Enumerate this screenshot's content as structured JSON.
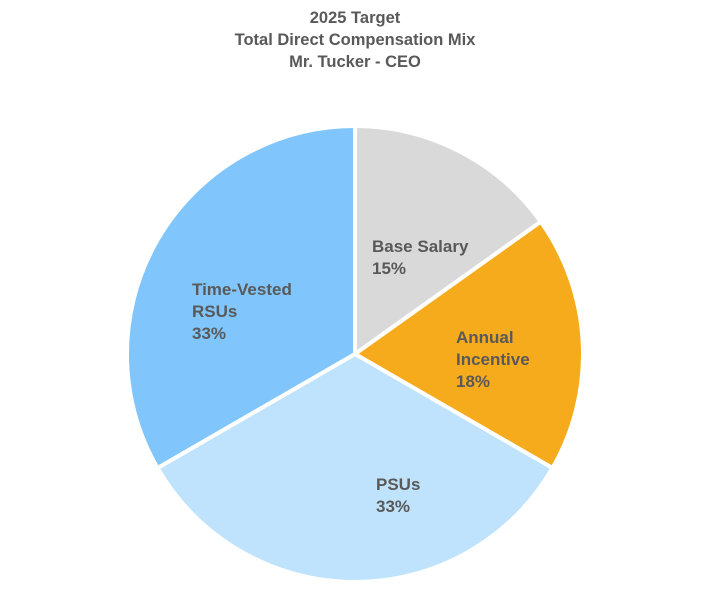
{
  "chart_data": {
    "type": "pie",
    "title": "2025 Target",
    "subtitle_lines": [
      "Total Direct Compensation Mix",
      "Mr. Tucker - CEO"
    ],
    "legend": "none",
    "slices": [
      {
        "label_lines": [
          "Base Salary"
        ],
        "value": 15,
        "value_label": "15%",
        "color": "#d9d9d9"
      },
      {
        "label_lines": [
          "Annual",
          "Incentive"
        ],
        "value": 18,
        "value_label": "18%",
        "color": "#f5ab1b"
      },
      {
        "label_lines": [
          "PSUs"
        ],
        "value": 33,
        "value_label": "33%",
        "color": "#bfe3fc"
      },
      {
        "label_lines": [
          "Time-Vested",
          "RSUs"
        ],
        "value": 33,
        "value_label": "33%",
        "color": "#80c6fc"
      }
    ]
  }
}
